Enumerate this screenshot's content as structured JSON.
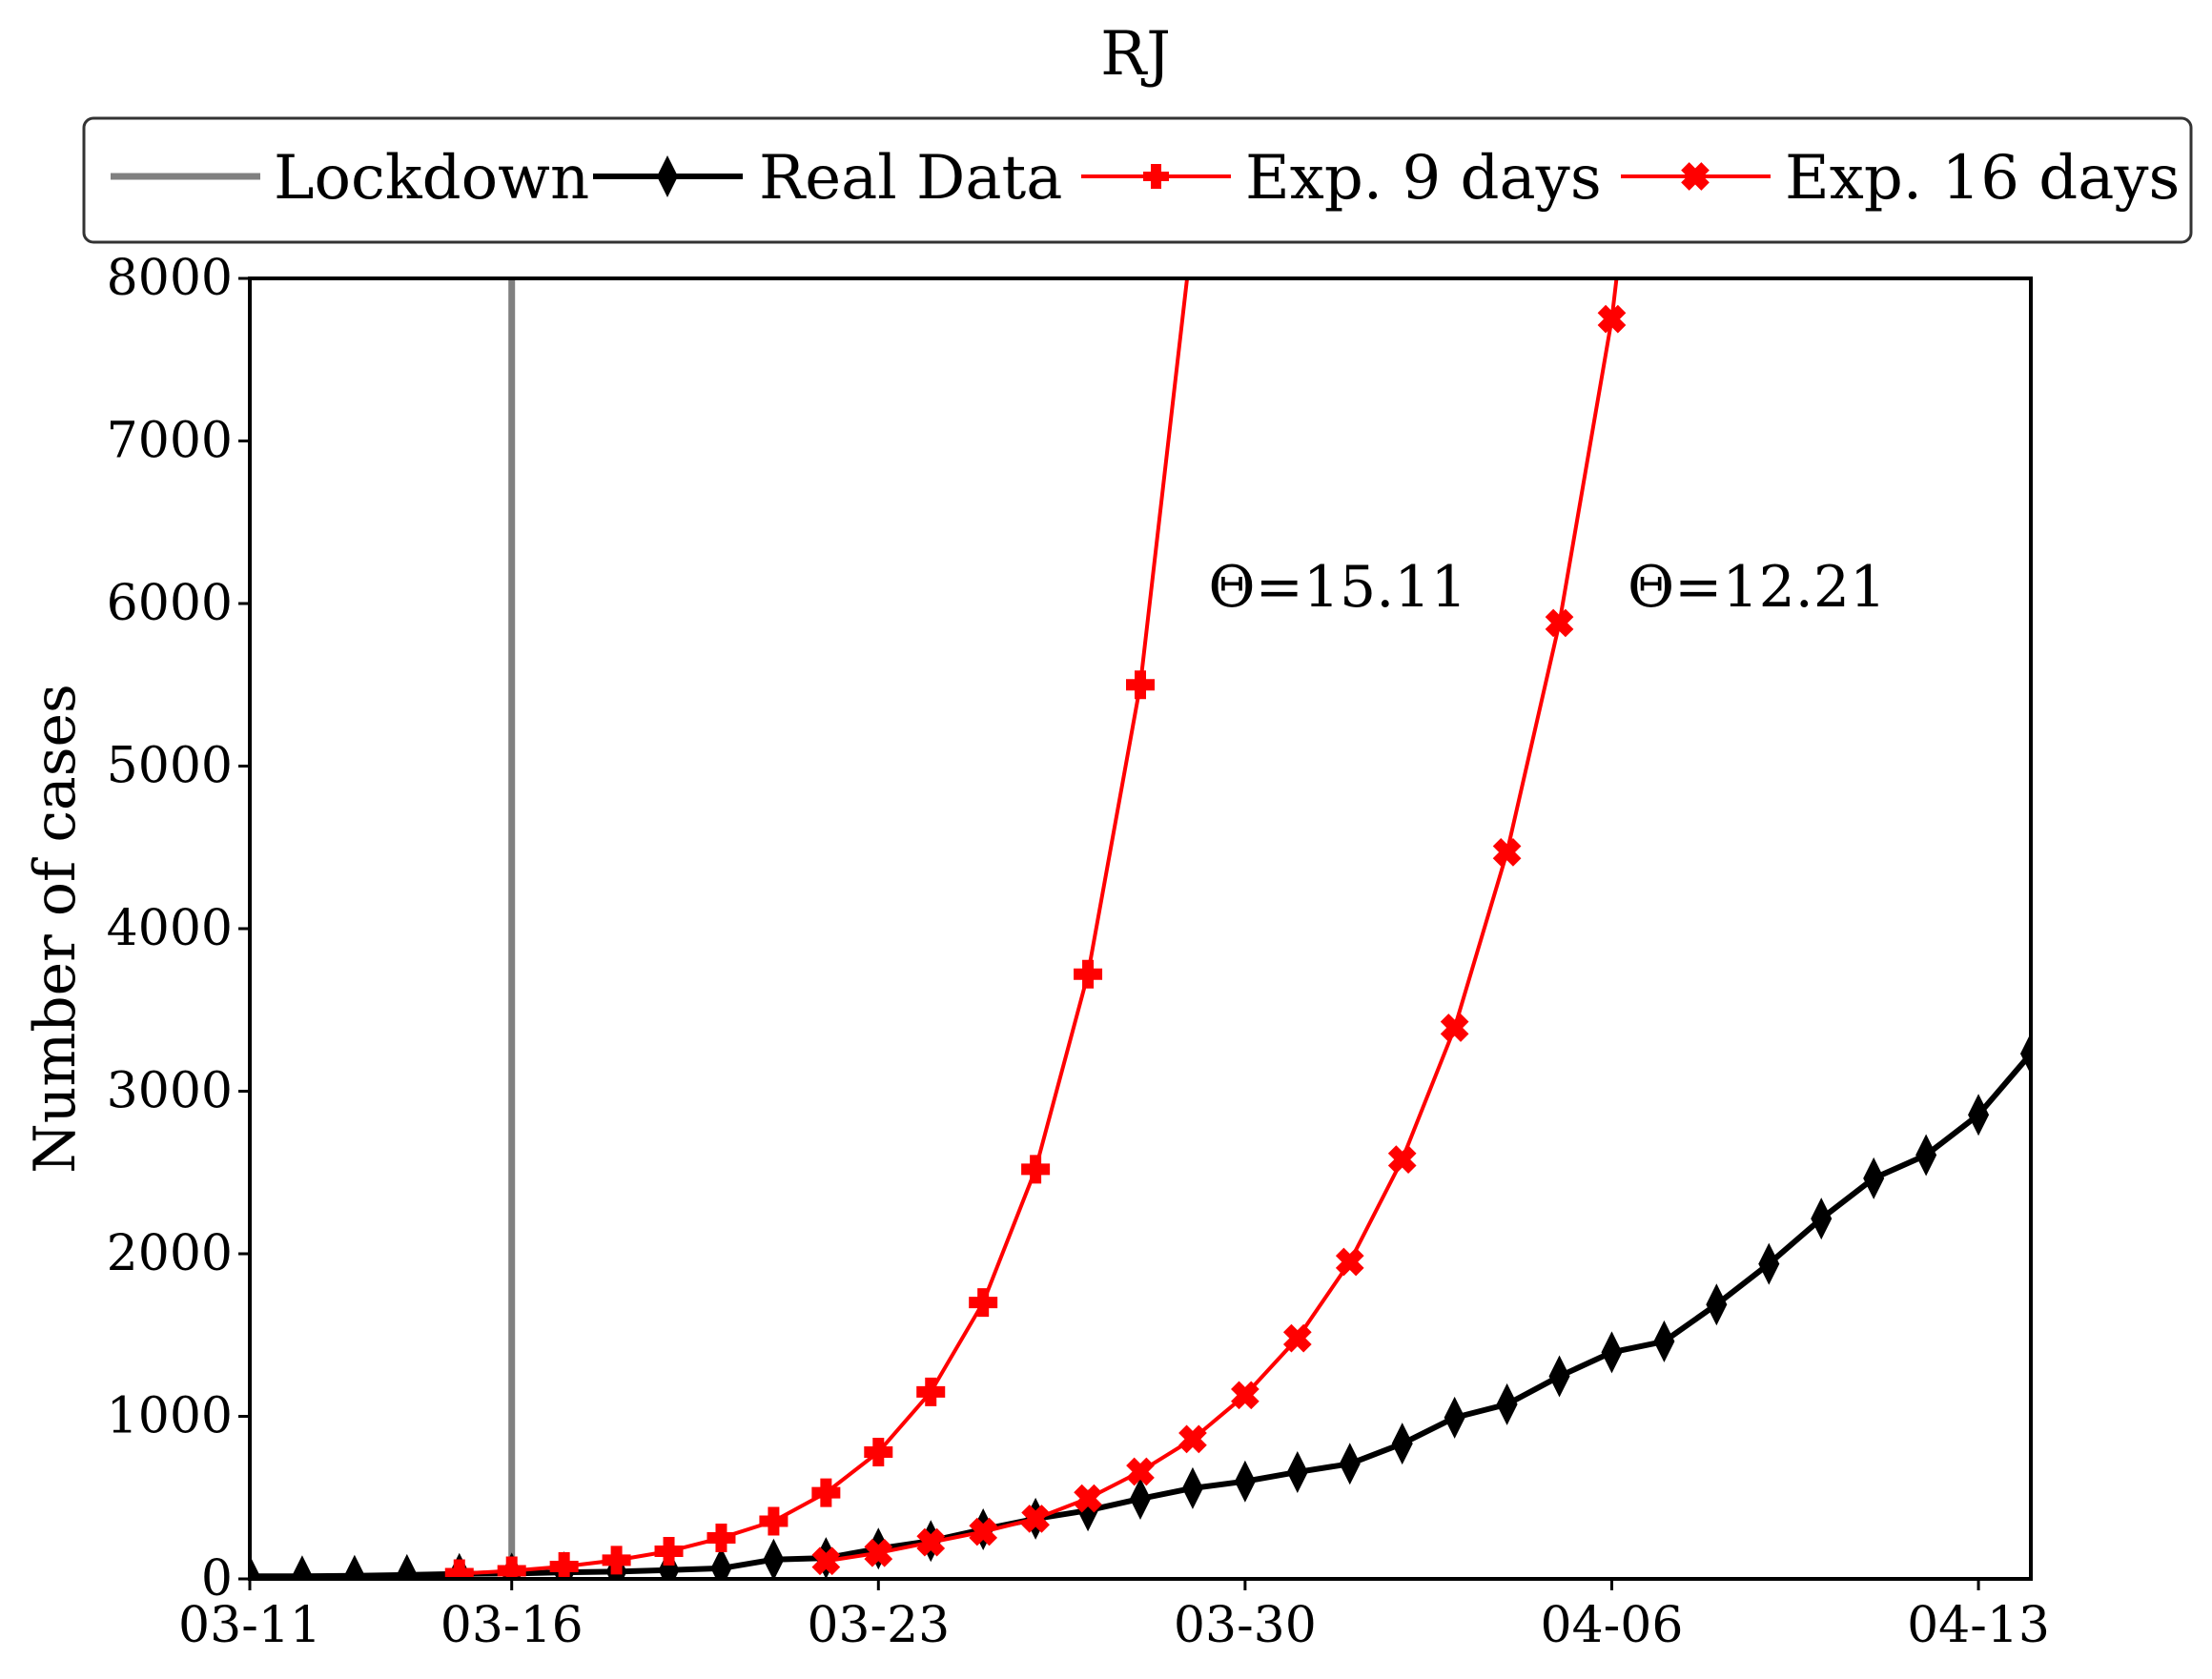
{
  "chart_data": {
    "type": "line",
    "title": "RJ",
    "xlabel": "",
    "ylabel": "Number of cases",
    "x_tick_labels": [
      "03-11",
      "03-16",
      "03-23",
      "03-30",
      "04-06",
      "04-13"
    ],
    "x_ticks_day": [
      0,
      5,
      12,
      19,
      26,
      33
    ],
    "xlim_day": [
      0,
      34
    ],
    "ylim": [
      0,
      8000
    ],
    "y_ticks": [
      0,
      1000,
      2000,
      3000,
      4000,
      5000,
      6000,
      7000,
      8000
    ],
    "y_tick_labels": [
      "0",
      "1000",
      "2000",
      "3000",
      "4000",
      "5000",
      "6000",
      "7000",
      "8000"
    ],
    "grid": false,
    "legend_position": "top, above plot",
    "legend": [
      "Lockdown",
      "Real Data",
      "Exp. 9 days",
      "Exp. 16 days"
    ],
    "lockdown": {
      "name": "Lockdown",
      "x_day": 5,
      "color": "#808080"
    },
    "series": [
      {
        "name": "Real Data",
        "color": "#000000",
        "marker": "thin-diamond",
        "x_day": [
          0,
          1,
          2,
          3,
          4,
          5,
          6,
          7,
          8,
          9,
          10,
          11,
          12,
          13,
          14,
          15,
          16,
          17,
          18,
          19,
          20,
          21,
          22,
          23,
          24,
          25,
          26,
          27,
          28,
          29,
          30,
          31,
          32,
          33,
          34
        ],
        "values": [
          16,
          16,
          19,
          24,
          31,
          33,
          40,
          45,
          54,
          65,
          119,
          128,
          186,
          233,
          305,
          370,
          421,
          493,
          558,
          600,
          657,
          708,
          832,
          992,
          1074,
          1246,
          1394,
          1461,
          1688,
          1938,
          2216,
          2464,
          2607,
          2855,
          3231
        ]
      },
      {
        "name": "Exp. 9 days",
        "color": "#ff0000",
        "marker": "plus",
        "x_day": [
          4,
          5,
          6,
          7,
          8,
          9,
          10,
          11,
          12,
          13,
          14,
          15,
          16,
          17,
          18
        ],
        "values": [
          32,
          50,
          76,
          115,
          170,
          252,
          355,
          530,
          780,
          1150,
          1700,
          2520,
          3720,
          5500,
          8300
        ]
      },
      {
        "name": "Exp. 16 days",
        "color": "#ff0000",
        "marker": "x",
        "x_day": [
          11,
          12,
          13,
          14,
          15,
          16,
          17,
          18,
          19,
          20,
          21,
          22,
          23,
          24,
          25,
          26,
          27
        ],
        "values": [
          110,
          160,
          225,
          290,
          370,
          495,
          660,
          860,
          1130,
          1480,
          1950,
          2580,
          3390,
          4470,
          5880,
          7750,
          10500
        ]
      }
    ],
    "annotations": [
      {
        "text": "Θ=15.11",
        "x_day": 18.3,
        "y": 6100
      },
      {
        "text": "Θ=12.21",
        "x_day": 26.3,
        "y": 6100
      }
    ]
  }
}
